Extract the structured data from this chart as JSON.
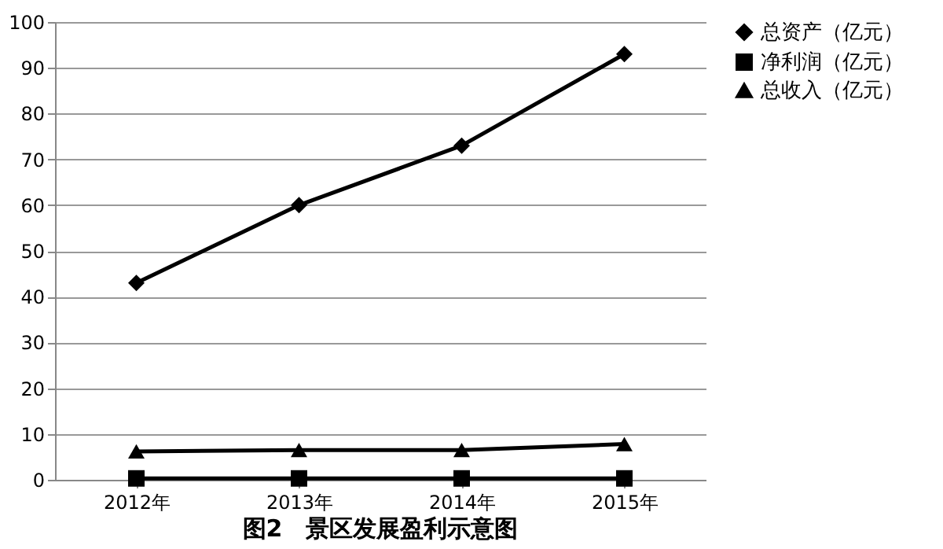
{
  "chart_data": {
    "type": "line",
    "title": "图2　景区发展盈利示意图",
    "categories": [
      "2012年",
      "2013年",
      "2014年",
      "2015年"
    ],
    "series": [
      {
        "name": "总资产（亿元）",
        "color": "#000000",
        "marker": "diamond",
        "values": [
          43,
          60,
          73,
          93
        ]
      },
      {
        "name": "净利润（亿元）",
        "color": "#000000",
        "marker": "square",
        "values": [
          0.3,
          0.3,
          0.3,
          0.3
        ]
      },
      {
        "name": "总收入（亿元）",
        "color": "#000000",
        "marker": "triangle",
        "values": [
          6.2,
          6.5,
          6.5,
          7.8
        ]
      }
    ],
    "ylim": [
      0,
      100
    ],
    "yticks": [
      0,
      10,
      20,
      30,
      40,
      50,
      60,
      70,
      80,
      90,
      100
    ],
    "grid": "y",
    "legend": "right",
    "line_style": "solid"
  }
}
